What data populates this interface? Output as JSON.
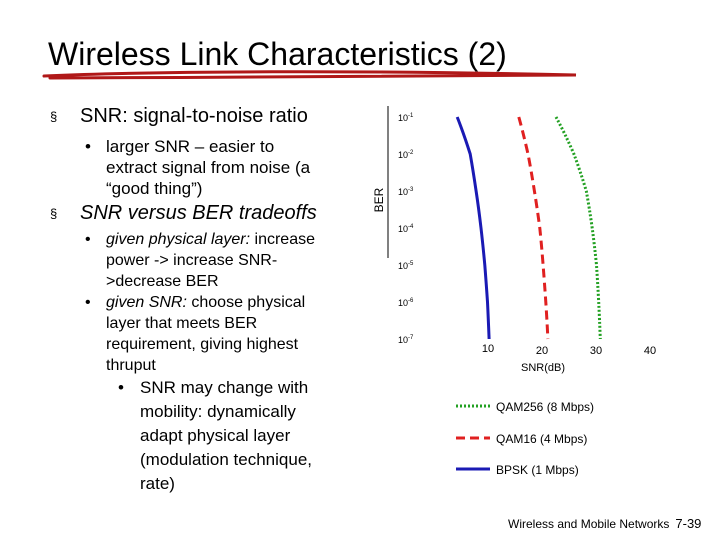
{
  "slide": {
    "title": "Wireless Link Characteristics (2)",
    "bullets": {
      "b1": "SNR: signal-to-noise ratio",
      "b1a_line1": "larger SNR – easier to",
      "b1a_line2": "extract signal from noise (a",
      "b1a_line3": "“good thing”)",
      "b2": "SNR versus BER tradeoffs",
      "b2a_italic": "given physical layer:",
      "b2a_rest": " increase",
      "b2a_line2": "power -> increase SNR-",
      "b2a_line3": ">decrease BER",
      "b2b_italic": "given SNR:",
      "b2b_rest": " choose physical",
      "b2b_line2": "layer that meets BER",
      "b2b_line3": "requirement, giving highest",
      "b2b_line4": "thruput",
      "b3_line1": "SNR may change with",
      "b3_line2": "mobility: dynamically",
      "b3_line3": "adapt physical layer",
      "b3_line4": "(modulation technique,",
      "b3_line5": "rate)"
    },
    "icons": [
      "square-bullet-icon",
      "round-bullet-icon"
    ],
    "footer": {
      "text": "Wireless and Mobile Networks",
      "page": "7-39"
    }
  },
  "chart_data": {
    "type": "line",
    "title": "",
    "xlabel": "SNR(dB)",
    "ylabel": "BER",
    "x_ticks": [
      10,
      20,
      30,
      40
    ],
    "y_ticks": [
      {
        "base": "10",
        "exp": "-1"
      },
      {
        "base": "10",
        "exp": "-2"
      },
      {
        "base": "10",
        "exp": "-3"
      },
      {
        "base": "10",
        "exp": "-4"
      },
      {
        "base": "10",
        "exp": "-5"
      },
      {
        "base": "10",
        "exp": "-6"
      },
      {
        "base": "10",
        "exp": "-7"
      }
    ],
    "y_scale": "log",
    "xlim": [
      10,
      40
    ],
    "ylim": [
      1e-07,
      0.1
    ],
    "grid": false,
    "legend_position": "bottom",
    "series": [
      {
        "name": "QAM256 (8 Mbps)",
        "color": "#22a022",
        "dash": "dotted",
        "points": [
          [
            22.6,
            0.1
          ],
          [
            25.9,
            0.01
          ],
          [
            28.2,
            0.001
          ],
          [
            29.3,
            0.0001
          ],
          [
            30.1,
            1e-05
          ],
          [
            30.5,
            1e-06
          ],
          [
            30.8,
            1e-07
          ]
        ]
      },
      {
        "name": "QAM16 (4 Mbps)",
        "color": "#e02020",
        "dash": "dashed",
        "points": [
          [
            15.7,
            0.1
          ],
          [
            17.4,
            0.01
          ],
          [
            18.6,
            0.001
          ],
          [
            19.6,
            0.0001
          ],
          [
            20.2,
            1e-05
          ],
          [
            20.7,
            1e-06
          ],
          [
            21.1,
            1e-07
          ]
        ]
      },
      {
        "name": "BPSK (1 Mbps)",
        "color": "#1a1ab4",
        "dash": "solid",
        "points": [
          [
            4.3,
            0.1
          ],
          [
            6.7,
            0.01
          ],
          [
            7.8,
            0.001
          ],
          [
            8.7,
            0.0001
          ],
          [
            9.4,
            1e-05
          ],
          [
            9.9,
            1e-06
          ],
          [
            10.2,
            1e-07
          ]
        ]
      }
    ]
  }
}
